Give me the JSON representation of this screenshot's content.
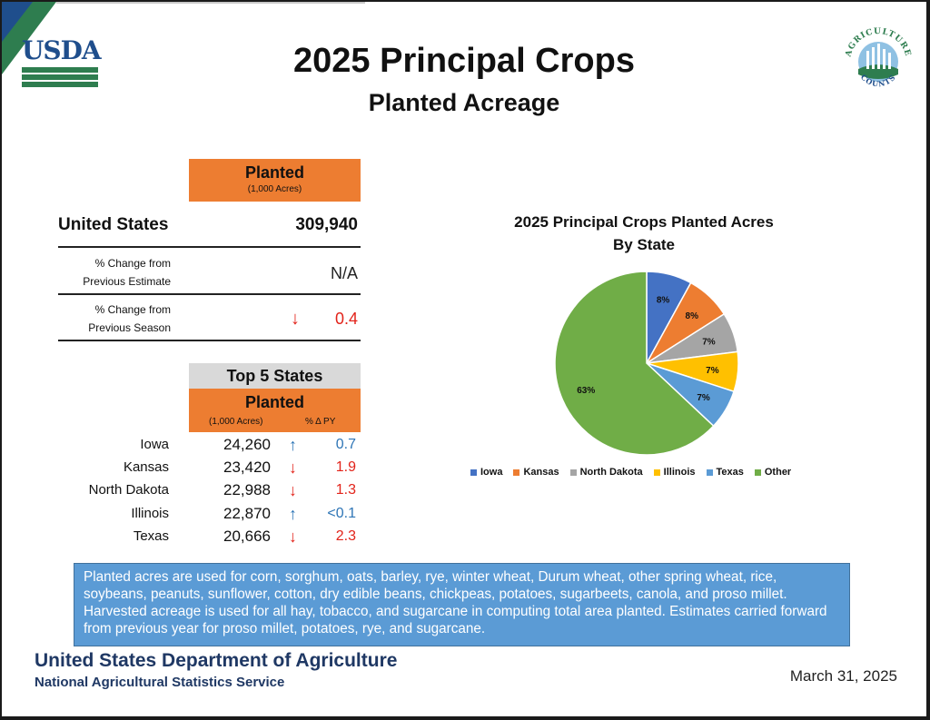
{
  "header": {
    "title": "2025 Principal Crops",
    "subtitle": "Planted Acreage",
    "left_logo_text": "USDA",
    "right_logo_text": "AGRICULTURE COUNTS"
  },
  "summary": {
    "planted_label": "Planted",
    "units_label": "(1,000 Acres)",
    "us_label": "United States",
    "us_value": "309,940",
    "prev_estimate_line1": "% Change from",
    "prev_estimate_line2": "Previous Estimate",
    "prev_estimate_value": "N/A",
    "prev_season_line1": "% Change from",
    "prev_season_line2": "Previous Season",
    "prev_season_arrow": "↓",
    "prev_season_value": "0.4"
  },
  "top5": {
    "title": "Top 5 States",
    "planted_label": "Planted",
    "units_label": "(1,000 Acres)",
    "pct_label": "% Δ PY",
    "rows": [
      {
        "state": "Iowa",
        "value": "24,260",
        "arrow": "↑",
        "pct": "0.7"
      },
      {
        "state": "Kansas",
        "value": "23,420",
        "arrow": "↓",
        "pct": "1.9"
      },
      {
        "state": "North Dakota",
        "value": "22,988",
        "arrow": "↓",
        "pct": "1.3"
      },
      {
        "state": "Illinois",
        "value": "22,870",
        "arrow": "↑",
        "pct": "<0.1"
      },
      {
        "state": "Texas",
        "value": "20,666",
        "arrow": "↓",
        "pct": "2.3"
      }
    ]
  },
  "chart_data": {
    "type": "pie",
    "title": "2025 Principal Crops Planted Acres",
    "subtitle": "By State",
    "categories": [
      "Iowa",
      "Kansas",
      "North Dakota",
      "Illinois",
      "Texas",
      "Other"
    ],
    "values": [
      8,
      8,
      7,
      7,
      7,
      63
    ],
    "labels": [
      "8%",
      "8%",
      "7%",
      "7%",
      "7%",
      "63%"
    ],
    "colors": [
      "#4472c4",
      "#ed7d31",
      "#a5a5a5",
      "#ffc000",
      "#5b9bd5",
      "#70ad47"
    ],
    "legend": "bottom"
  },
  "note": {
    "text": "Planted acres are used for corn, sorghum, oats, barley, rye, winter wheat, Durum wheat, other spring wheat, rice, soybeans, peanuts, sunflower, cotton, dry edible beans, chickpeas, potatoes, sugarbeets, canola, and proso millet. Harvested acreage is used for all hay, tobacco, and sugarcane in computing total area planted. Estimates carried forward from previous year for proso millet, potatoes, rye, and sugarcane."
  },
  "footer": {
    "org": "United States Department of Agriculture",
    "agency": "National Agricultural Statistics Service",
    "date": "March 31, 2025"
  }
}
